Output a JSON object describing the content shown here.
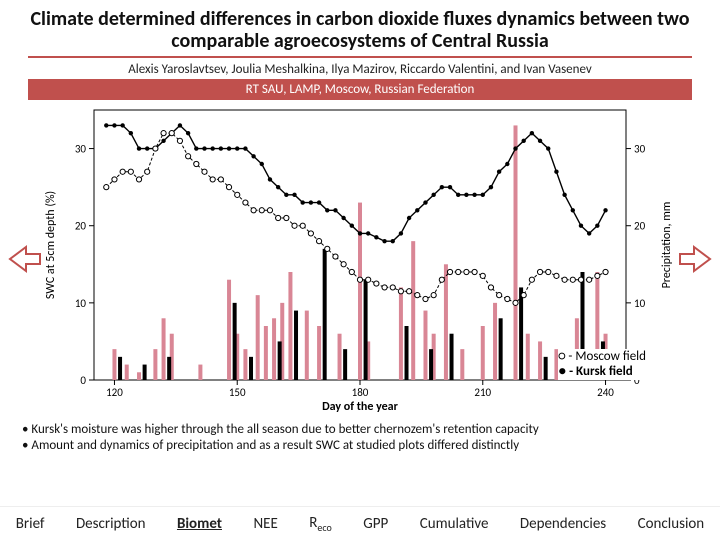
{
  "title": "Climate determined differences in carbon dioxide fluxes dynamics between two comparable agroecosystems of Central Russia",
  "authors": "Alexis Yaroslavtsev, Joulia Meshalkina, Ilya Mazirov, Riccardo Valentini, and Ivan Vasenev",
  "affiliation": "RT SAU, LAMP, Moscow, Russian Federation",
  "legend": {
    "open": "○ - Moscow field",
    "closed": "● - Kursk field"
  },
  "bullets": [
    "Kursk's moisture was higher through the all season due to better chernozem's retention capacity",
    "Amount and dynamics of precipitation and as a result SWC at studied plots differed distinctly"
  ],
  "nav": [
    "Brief",
    "Description",
    "Biomet",
    "NEE",
    "R|eco",
    "GPP",
    "Cumulative",
    "Dependencies",
    "Conclusion"
  ],
  "nav_active_index": 2,
  "chart": {
    "type": "dual-axis-scatter+bar",
    "x_label": "Day of the year",
    "y_left_label": "SWC at 5cm depth (%)",
    "y_right_label": "Precipitation, mm",
    "xlim": [
      115,
      245
    ],
    "xticks": [
      120,
      150,
      180,
      210,
      240
    ],
    "yleft_lim": [
      0,
      35
    ],
    "yleft_ticks": [
      0,
      10,
      20,
      30
    ],
    "yright_lim": [
      0,
      35
    ],
    "yright_ticks": [
      0,
      10,
      20,
      30
    ],
    "colors": {
      "moscow_line": "#000000",
      "moscow_marker": "#ffffff",
      "moscow_stroke": "#000000",
      "kursk_line": "#000000",
      "kursk_marker": "#000000",
      "precip_moscow": "#d98695",
      "precip_kursk": "#000000",
      "axis": "#000000",
      "bg": "#ffffff"
    },
    "fontsize_labels": 12,
    "fontsize_ticks": 11,
    "swc_moscow": [
      [
        118,
        25
      ],
      [
        120,
        26
      ],
      [
        122,
        27
      ],
      [
        124,
        27
      ],
      [
        126,
        26
      ],
      [
        128,
        27
      ],
      [
        130,
        30
      ],
      [
        132,
        32
      ],
      [
        134,
        32
      ],
      [
        136,
        31
      ],
      [
        138,
        29
      ],
      [
        140,
        28
      ],
      [
        142,
        27
      ],
      [
        144,
        26
      ],
      [
        146,
        26
      ],
      [
        148,
        25
      ],
      [
        150,
        24
      ],
      [
        152,
        23
      ],
      [
        154,
        22
      ],
      [
        156,
        22
      ],
      [
        158,
        22
      ],
      [
        160,
        21
      ],
      [
        162,
        21
      ],
      [
        164,
        20
      ],
      [
        166,
        20
      ],
      [
        168,
        19
      ],
      [
        170,
        18
      ],
      [
        172,
        17
      ],
      [
        174,
        16
      ],
      [
        176,
        15
      ],
      [
        178,
        14
      ],
      [
        180,
        13
      ],
      [
        182,
        13
      ],
      [
        184,
        12.5
      ],
      [
        186,
        12
      ],
      [
        188,
        12
      ],
      [
        190,
        11.5
      ],
      [
        192,
        11.5
      ],
      [
        194,
        11
      ],
      [
        196,
        10.5
      ],
      [
        198,
        11
      ],
      [
        200,
        13
      ],
      [
        202,
        14
      ],
      [
        204,
        14
      ],
      [
        206,
        14
      ],
      [
        208,
        14
      ],
      [
        210,
        13.5
      ],
      [
        212,
        12
      ],
      [
        214,
        11
      ],
      [
        216,
        10.5
      ],
      [
        218,
        10
      ],
      [
        220,
        11
      ],
      [
        222,
        13
      ],
      [
        224,
        14
      ],
      [
        226,
        14
      ],
      [
        228,
        13.5
      ],
      [
        230,
        13
      ],
      [
        232,
        13
      ],
      [
        234,
        13
      ],
      [
        236,
        13
      ],
      [
        238,
        13.5
      ],
      [
        240,
        14
      ]
    ],
    "swc_kursk": [
      [
        118,
        33
      ],
      [
        120,
        33
      ],
      [
        122,
        33
      ],
      [
        124,
        32
      ],
      [
        126,
        30
      ],
      [
        128,
        30
      ],
      [
        130,
        30
      ],
      [
        132,
        31
      ],
      [
        134,
        32
      ],
      [
        136,
        33
      ],
      [
        138,
        32
      ],
      [
        140,
        30
      ],
      [
        142,
        30
      ],
      [
        144,
        30
      ],
      [
        146,
        30
      ],
      [
        148,
        30
      ],
      [
        150,
        30
      ],
      [
        152,
        30
      ],
      [
        154,
        29
      ],
      [
        156,
        28
      ],
      [
        158,
        26
      ],
      [
        160,
        25
      ],
      [
        162,
        24
      ],
      [
        164,
        24
      ],
      [
        166,
        23
      ],
      [
        168,
        23
      ],
      [
        170,
        23
      ],
      [
        172,
        22
      ],
      [
        174,
        22
      ],
      [
        176,
        21
      ],
      [
        178,
        20
      ],
      [
        180,
        19
      ],
      [
        182,
        19
      ],
      [
        184,
        18.5
      ],
      [
        186,
        18
      ],
      [
        188,
        18
      ],
      [
        190,
        19
      ],
      [
        192,
        21
      ],
      [
        194,
        22
      ],
      [
        196,
        23
      ],
      [
        198,
        24
      ],
      [
        200,
        25
      ],
      [
        202,
        25
      ],
      [
        204,
        24
      ],
      [
        206,
        24
      ],
      [
        208,
        24
      ],
      [
        210,
        24
      ],
      [
        212,
        25
      ],
      [
        214,
        27
      ],
      [
        216,
        28
      ],
      [
        218,
        30
      ],
      [
        220,
        31
      ],
      [
        222,
        32
      ],
      [
        224,
        31
      ],
      [
        226,
        30
      ],
      [
        228,
        27
      ],
      [
        230,
        24
      ],
      [
        232,
        22
      ],
      [
        234,
        20
      ],
      [
        236,
        19
      ],
      [
        238,
        20
      ],
      [
        240,
        22
      ]
    ],
    "precip_moscow": [
      [
        120,
        4
      ],
      [
        123,
        2
      ],
      [
        126,
        1
      ],
      [
        130,
        4
      ],
      [
        132,
        8
      ],
      [
        134,
        6
      ],
      [
        141,
        2
      ],
      [
        148,
        13
      ],
      [
        150,
        6
      ],
      [
        152,
        4
      ],
      [
        155,
        11
      ],
      [
        157,
        7
      ],
      [
        159,
        8
      ],
      [
        161,
        10
      ],
      [
        163,
        14
      ],
      [
        167,
        9
      ],
      [
        170,
        7
      ],
      [
        175,
        6
      ],
      [
        180,
        23
      ],
      [
        182,
        5
      ],
      [
        190,
        12
      ],
      [
        193,
        18
      ],
      [
        196,
        9
      ],
      [
        198,
        6
      ],
      [
        201,
        15
      ],
      [
        205,
        4
      ],
      [
        210,
        7
      ],
      [
        213,
        10
      ],
      [
        218,
        33
      ],
      [
        221,
        6
      ],
      [
        224,
        5
      ],
      [
        228,
        4
      ],
      [
        233,
        8
      ],
      [
        238,
        14
      ],
      [
        240,
        6
      ]
    ],
    "precip_kursk": [
      [
        121,
        3
      ],
      [
        127,
        2
      ],
      [
        133,
        3
      ],
      [
        149,
        10
      ],
      [
        153,
        3
      ],
      [
        160,
        5
      ],
      [
        164,
        9
      ],
      [
        171,
        17
      ],
      [
        176,
        4
      ],
      [
        181,
        13
      ],
      [
        191,
        7
      ],
      [
        197,
        4
      ],
      [
        202,
        6
      ],
      [
        214,
        8
      ],
      [
        219,
        12
      ],
      [
        225,
        3
      ],
      [
        234,
        14
      ],
      [
        239,
        5
      ]
    ]
  }
}
